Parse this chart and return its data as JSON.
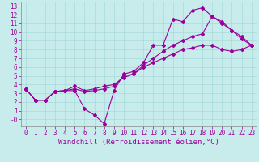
{
  "xlabel": "Windchill (Refroidissement éolien,°C)",
  "bg_color": "#c8ecec",
  "line_color": "#990099",
  "xlim": [
    -0.5,
    23.5
  ],
  "ylim": [
    -0.8,
    13.5
  ],
  "xticks": [
    0,
    1,
    2,
    3,
    4,
    5,
    6,
    7,
    8,
    9,
    10,
    11,
    12,
    13,
    14,
    15,
    16,
    17,
    18,
    19,
    20,
    21,
    22,
    23
  ],
  "yticks": [
    0,
    1,
    2,
    3,
    4,
    5,
    6,
    7,
    8,
    9,
    10,
    11,
    12,
    13
  ],
  "ytick_labels": [
    "-0",
    "1",
    "2",
    "3",
    "4",
    "5",
    "6",
    "7",
    "8",
    "9",
    "10",
    "11",
    "12",
    "13"
  ],
  "line1_x": [
    0,
    1,
    2,
    3,
    4,
    5,
    6,
    7,
    8,
    9,
    10,
    11,
    12,
    13,
    14,
    15,
    16,
    17,
    18,
    19,
    20,
    21,
    22,
    23
  ],
  "line1_y": [
    3.5,
    2.2,
    2.2,
    3.2,
    3.3,
    3.3,
    1.2,
    0.5,
    -0.5,
    3.3,
    5.2,
    5.5,
    6.5,
    8.5,
    8.5,
    11.5,
    11.2,
    12.5,
    12.8,
    11.8,
    11.2,
    10.2,
    9.2,
    8.5
  ],
  "line2_x": [
    0,
    1,
    2,
    3,
    4,
    5,
    6,
    7,
    8,
    9,
    10,
    11,
    12,
    13,
    14,
    15,
    16,
    17,
    18,
    19,
    20,
    21,
    22,
    23
  ],
  "line2_y": [
    3.5,
    2.2,
    2.2,
    3.2,
    3.3,
    3.8,
    3.3,
    3.5,
    3.8,
    4.0,
    4.8,
    5.2,
    6.0,
    6.5,
    7.0,
    7.5,
    8.0,
    8.2,
    8.5,
    8.5,
    8.0,
    7.8,
    8.0,
    8.5
  ],
  "line3_x": [
    0,
    1,
    2,
    3,
    4,
    5,
    6,
    7,
    8,
    9,
    10,
    11,
    12,
    13,
    14,
    15,
    16,
    17,
    18,
    19,
    20,
    21,
    22,
    23
  ],
  "line3_y": [
    3.5,
    2.2,
    2.2,
    3.2,
    3.3,
    3.5,
    3.2,
    3.3,
    3.5,
    3.8,
    5.0,
    5.2,
    6.2,
    7.0,
    7.8,
    8.5,
    9.0,
    9.5,
    9.8,
    11.8,
    11.0,
    10.2,
    9.5,
    8.5
  ],
  "xlabel_fontsize": 6.5,
  "tick_fontsize": 5.5,
  "marker": "D",
  "markersize": 2.0,
  "linewidth": 0.8
}
